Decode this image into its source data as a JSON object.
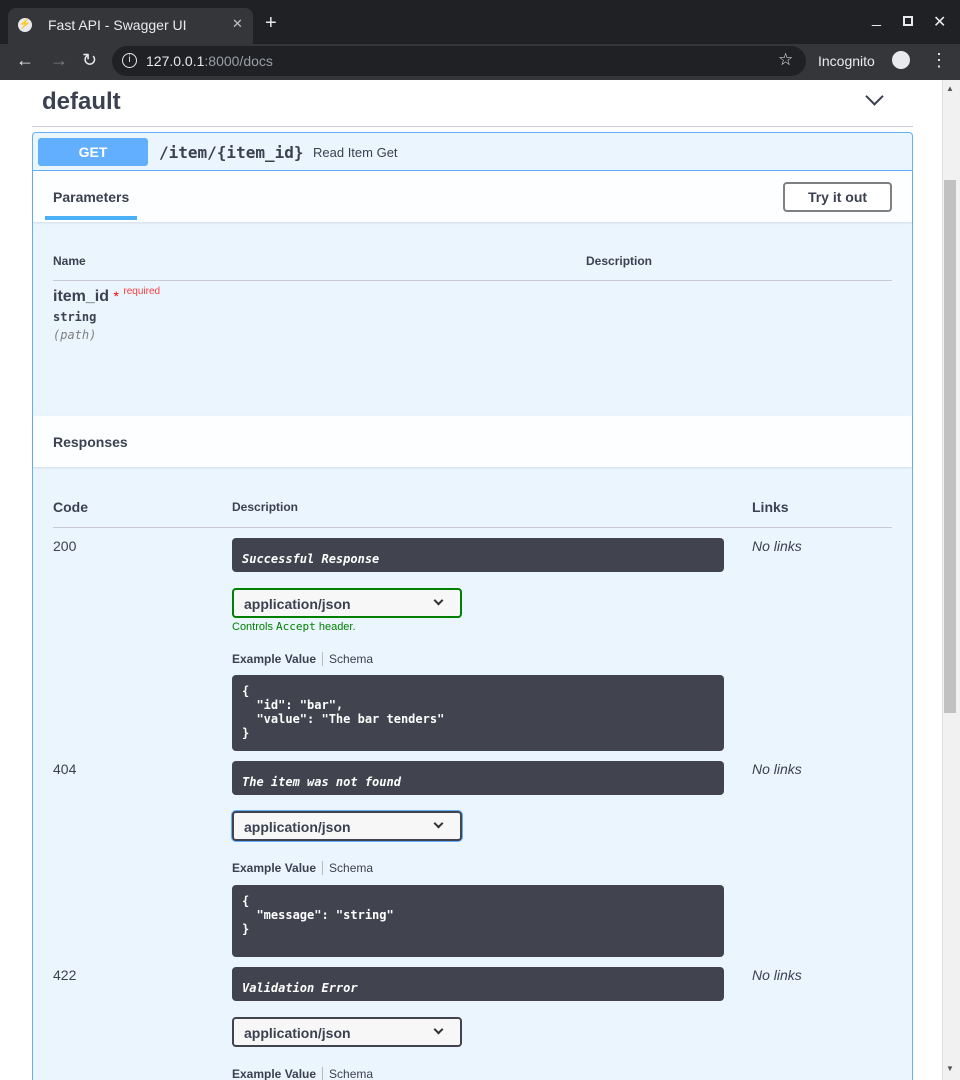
{
  "browser": {
    "tab_title": "Fast API - Swagger UI",
    "url_host": "127.0.0.1",
    "url_rest": ":8000/docs",
    "profile": "Incognito"
  },
  "section": {
    "title": "default"
  },
  "operation": {
    "method": "GET",
    "path": "/item/{item_id}",
    "summary": "Read Item Get",
    "method_color": "#61affe"
  },
  "parameters": {
    "tab": "Parameters",
    "try_button": "Try it out",
    "col_name": "Name",
    "col_desc": "Description",
    "items": [
      {
        "name": "item_id",
        "star": "*",
        "required": "required",
        "type": "string",
        "in": "(path)"
      }
    ]
  },
  "responses": {
    "title": "Responses",
    "col_code": "Code",
    "col_desc": "Description",
    "col_links": "Links",
    "items": [
      {
        "code": "200",
        "description": "Successful Response",
        "media": "application/json",
        "controls": "Controls ",
        "accept": "Accept",
        "header": " header.",
        "example_tab": "Example Value",
        "schema_tab": "Schema",
        "example": "{\n  \"id\": \"bar\",\n  \"value\": \"The bar tenders\"\n}",
        "links": "No links"
      },
      {
        "code": "404",
        "description": "The item was not found",
        "media": "application/json",
        "example_tab": "Example Value",
        "schema_tab": "Schema",
        "example": "{\n  \"message\": \"string\"\n}",
        "links": "No links"
      },
      {
        "code": "422",
        "description": "Validation Error",
        "media": "application/json",
        "example_tab": "Example Value",
        "schema_tab": "Schema",
        "links": "No links"
      }
    ]
  }
}
